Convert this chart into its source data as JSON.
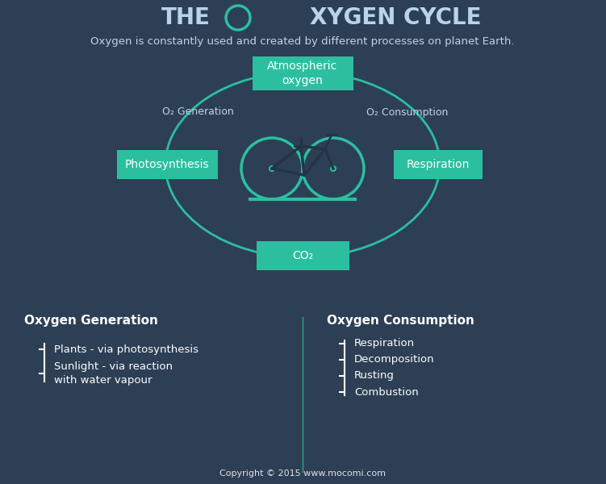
{
  "bg_top": "#2d3f55",
  "bg_bottom": "#2bbfa0",
  "teal": "#2bbfa0",
  "teal_dark": "#25a88a",
  "white": "#ffffff",
  "title_color": "#b8d4e8",
  "subtitle_color": "#c0d5e8",
  "label_color": "#c0d5e8",
  "bike_frame_color": "#243447",
  "bike_wheel_color": "#2bbfa0",
  "subtitle": "Oxygen is constantly used and created by different processes on planet Earth.",
  "o2_gen": "O₂ Generation",
  "o2_con": "O₂ Consumption",
  "box_atm": "Atmospheric\noxygen",
  "box_photo": "Photosynthesis",
  "box_resp": "Respiration",
  "box_co2": "CO₂",
  "gen_title": "Oxygen Generation",
  "con_title": "Oxygen Consumption",
  "gen_items": [
    "Plants - via photosynthesis",
    "Sunlight - via reaction\nwith water vapour"
  ],
  "con_items": [
    "Respiration",
    "Decomposition",
    "Rusting",
    "Combustion"
  ],
  "copyright": "Copyright © 2015 www.mocomi.com"
}
